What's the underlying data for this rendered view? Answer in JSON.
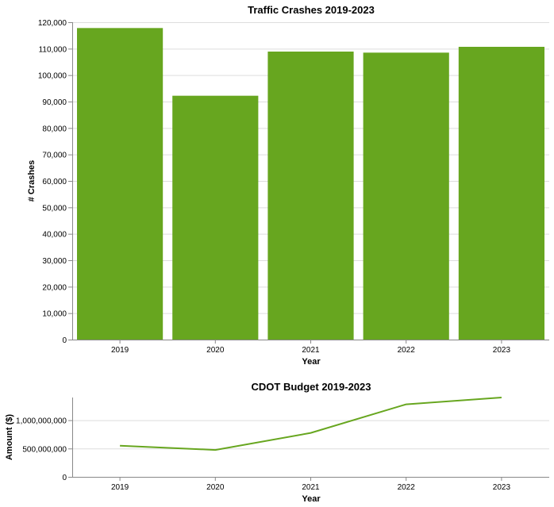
{
  "chart_data": [
    {
      "type": "bar",
      "title": "Traffic Crashes 2019-2023",
      "xlabel": "Year",
      "ylabel": "# Crashes",
      "categories": [
        "2019",
        "2020",
        "2021",
        "2022",
        "2023"
      ],
      "values": [
        117800,
        92200,
        108900,
        108500,
        110700
      ],
      "ylim": [
        0,
        120000
      ],
      "yticks": [
        0,
        10000,
        20000,
        30000,
        40000,
        50000,
        60000,
        70000,
        80000,
        90000,
        100000,
        110000,
        120000
      ],
      "ytick_labels": [
        "0",
        "10,000",
        "20,000",
        "30,000",
        "40,000",
        "50,000",
        "60,000",
        "70,000",
        "80,000",
        "90,000",
        "100,000",
        "110,000",
        "120,000"
      ],
      "grid": true,
      "color": "#67a61f"
    },
    {
      "type": "line",
      "title": "CDOT Budget 2019-2023",
      "xlabel": "Year",
      "ylabel": "Amount ($)",
      "categories": [
        "2019",
        "2020",
        "2021",
        "2022",
        "2023"
      ],
      "values": [
        550000000,
        475000000,
        775000000,
        1280000000,
        1400000000
      ],
      "ylim": [
        0,
        1400000000
      ],
      "yticks": [
        0,
        500000000,
        1000000000
      ],
      "ytick_labels": [
        "0",
        "500,000,000",
        "1,000,000,000"
      ],
      "grid": true,
      "color": "#67a61f"
    }
  ]
}
